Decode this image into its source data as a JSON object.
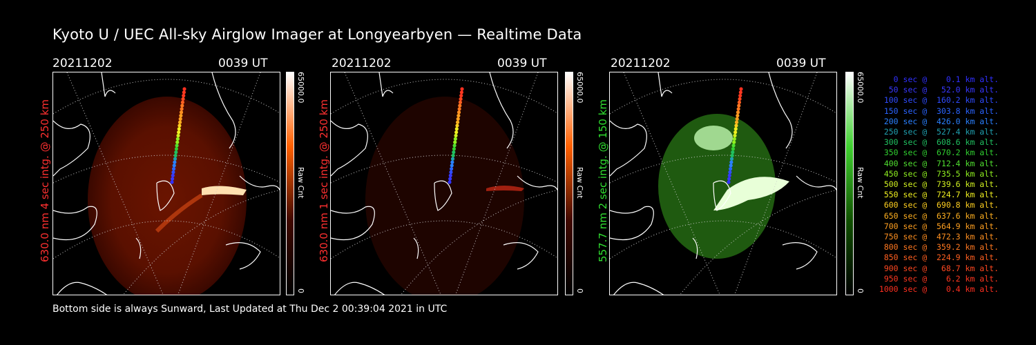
{
  "title": "Kyoto U / UEC All-sky Airglow Imager at Longyearbyen — Realtime Data",
  "footer": "Bottom side is always Sunward, Last Updated at Thu Dec  2 00:39:04 2021 in UTC",
  "panels": [
    {
      "date": "20211202",
      "time": "0039 UT",
      "channel_label": "630.0 nm 4 sec intg. @ 250 km",
      "channel_color": "#ff3030",
      "colorbar_max": "65000.0",
      "colorbar_unit": "Raw Cnt",
      "colorbar_zero": "0",
      "colormap": "red"
    },
    {
      "date": "20211202",
      "time": "0039 UT",
      "channel_label": "630.0 nm 1 sec intg. @ 250 km",
      "channel_color": "#ff3030",
      "colorbar_max": "65000.0",
      "colorbar_unit": "Raw Cnt",
      "colorbar_zero": "0",
      "colormap": "dark-red"
    },
    {
      "date": "20211202",
      "time": "0039 UT",
      "channel_label": "557.7 nm 2 sec intg. @ 150 km",
      "channel_color": "#30e030",
      "colorbar_max": "65000.0",
      "colorbar_unit": "Raw Cnt",
      "colorbar_zero": "0",
      "colormap": "green"
    }
  ],
  "altitude_legend": [
    {
      "text": "0 sec @    0.1 km alt.",
      "color": "#3030ff"
    },
    {
      "text": "50 sec @   52.0 km alt.",
      "color": "#3838ff"
    },
    {
      "text": "100 sec @  160.2 km alt.",
      "color": "#2f4cff"
    },
    {
      "text": "150 sec @  303.8 km alt.",
      "color": "#2a64ff"
    },
    {
      "text": "200 sec @  426.0 km alt.",
      "color": "#2a80ff"
    },
    {
      "text": "250 sec @  527.4 km alt.",
      "color": "#20a0b0"
    },
    {
      "text": "300 sec @  608.6 km alt.",
      "color": "#20c060"
    },
    {
      "text": "350 sec @  670.2 km alt.",
      "color": "#30d030"
    },
    {
      "text": "400 sec @  712.4 km alt.",
      "color": "#50e030"
    },
    {
      "text": "450 sec @  735.5 km alt.",
      "color": "#90f020"
    },
    {
      "text": "500 sec @  739.6 km alt.",
      "color": "#d0f020"
    },
    {
      "text": "550 sec @  724.7 km alt.",
      "color": "#f0f020"
    },
    {
      "text": "600 sec @  690.8 km alt.",
      "color": "#ffd020"
    },
    {
      "text": "650 sec @  637.6 km alt.",
      "color": "#ffb020"
    },
    {
      "text": "700 sec @  564.9 km alt.",
      "color": "#ffa020"
    },
    {
      "text": "750 sec @  472.3 km alt.",
      "color": "#ff9020"
    },
    {
      "text": "800 sec @  359.2 km alt.",
      "color": "#ff7820"
    },
    {
      "text": "850 sec @  224.9 km alt.",
      "color": "#ff6020"
    },
    {
      "text": "900 sec @   68.7 km alt.",
      "color": "#ff4820"
    },
    {
      "text": "950 sec @    6.2 km alt.",
      "color": "#ff3820"
    },
    {
      "text": "1000 sec @    0.4 km alt.",
      "color": "#ff3020"
    }
  ]
}
